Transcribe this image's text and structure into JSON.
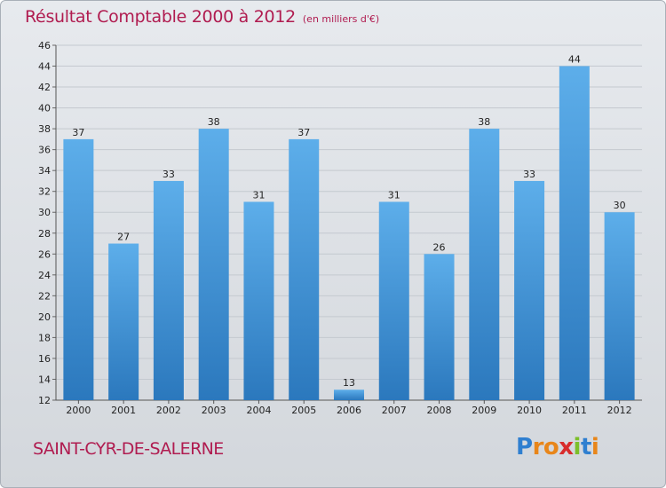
{
  "chart_data": {
    "type": "bar",
    "title": "Résultat Comptable 2000 à 2012",
    "subtitle": "(en milliers d'€)",
    "categories": [
      "2000",
      "2001",
      "2002",
      "2003",
      "2004",
      "2005",
      "2006",
      "2007",
      "2008",
      "2009",
      "2010",
      "2011",
      "2012"
    ],
    "values": [
      37,
      27,
      33,
      38,
      31,
      37,
      13,
      31,
      26,
      38,
      33,
      44,
      30
    ],
    "ylim": [
      12,
      46
    ],
    "yticks": [
      12,
      14,
      16,
      18,
      20,
      22,
      24,
      26,
      28,
      30,
      32,
      34,
      36,
      38,
      40,
      42,
      44,
      46
    ],
    "xlabel": "",
    "ylabel": "",
    "grid": true,
    "bar_color": "#3f8fd2"
  },
  "footer": {
    "location": "SAINT-CYR-DE-SALERNE",
    "logo_letters": [
      "P",
      "r",
      "o",
      "x",
      "i",
      "t",
      "i"
    ],
    "logo_colors": [
      "#2f7fd0",
      "#e8861a",
      "#e8861a",
      "#d82c2c",
      "#7cbf2a",
      "#2f7fd0",
      "#e8861a"
    ]
  }
}
